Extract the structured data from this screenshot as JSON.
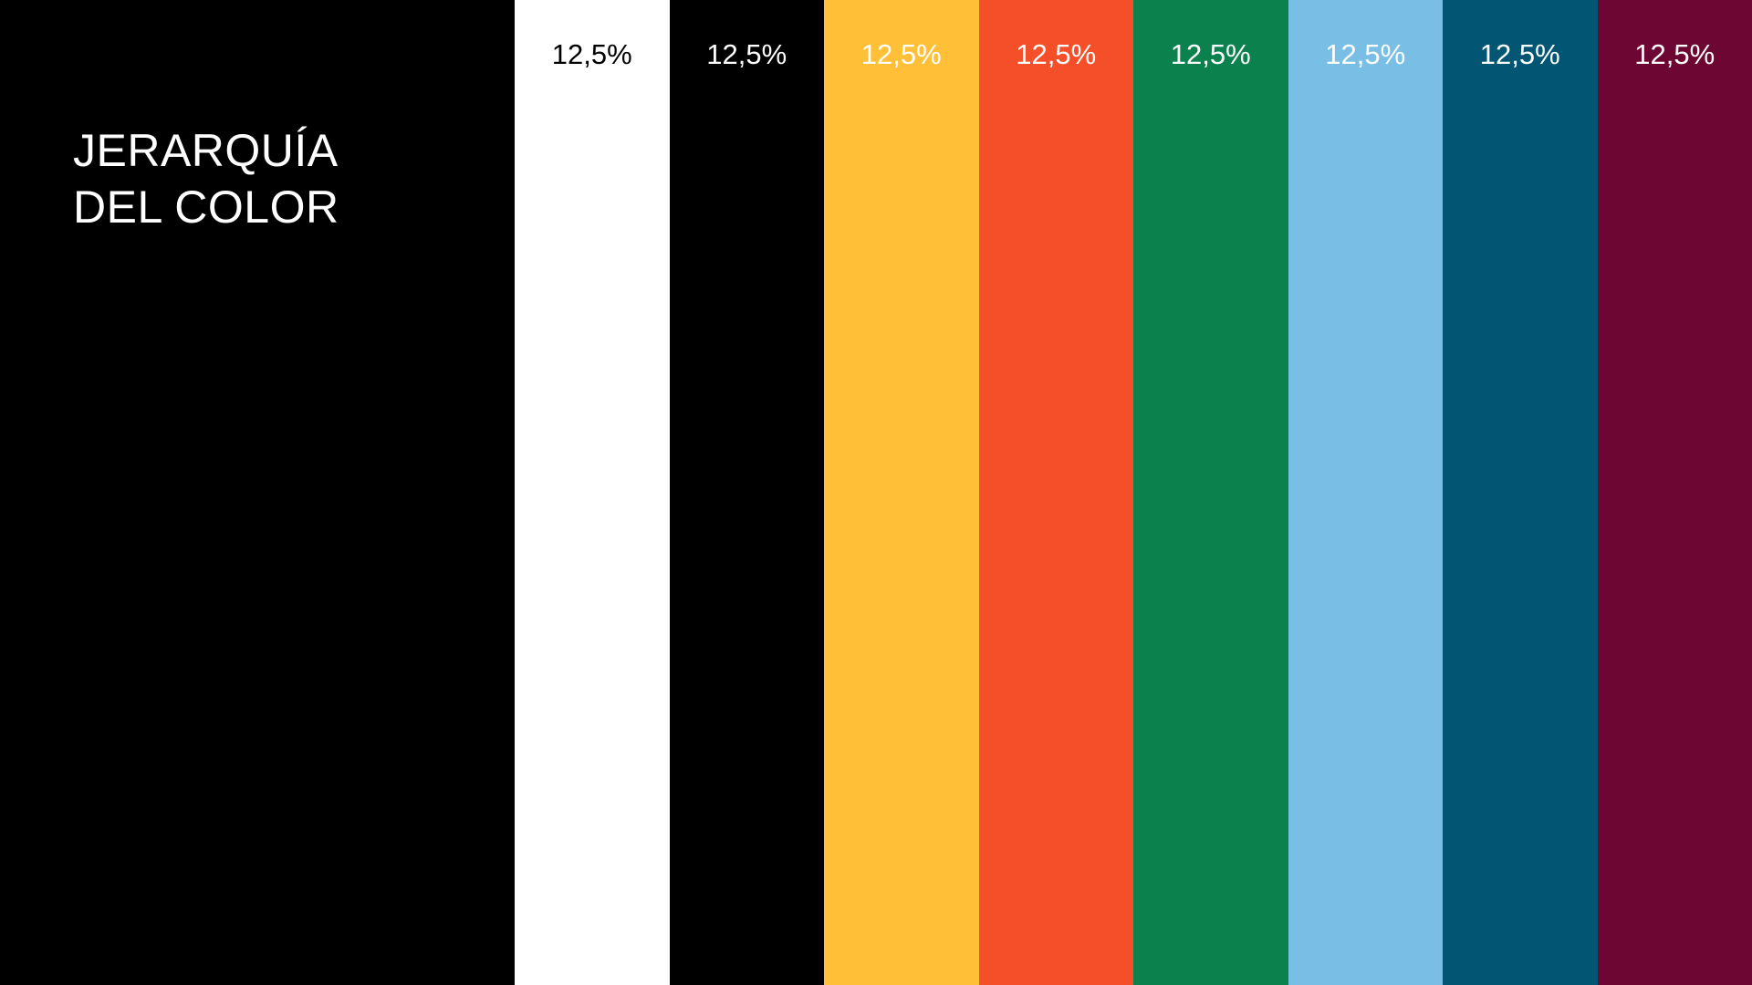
{
  "title": {
    "line1": "JERARQUÍA",
    "line2": "DEL COLOR"
  },
  "swatches": [
    {
      "label": "12,5%",
      "color": "#ffffff",
      "text_color": "#000000"
    },
    {
      "label": "12,5%",
      "color": "#000000",
      "text_color": "#ffffff"
    },
    {
      "label": "12,5%",
      "color": "#ffbf37",
      "text_color": "#ffffff"
    },
    {
      "label": "12,5%",
      "color": "#f44f29",
      "text_color": "#ffffff"
    },
    {
      "label": "12,5%",
      "color": "#0b824e",
      "text_color": "#ffffff"
    },
    {
      "label": "12,5%",
      "color": "#78bee5",
      "text_color": "#ffffff"
    },
    {
      "label": "12,5%",
      "color": "#025673",
      "text_color": "#ffffff"
    },
    {
      "label": "12,5%",
      "color": "#6d0632",
      "text_color": "#ffffff"
    }
  ]
}
